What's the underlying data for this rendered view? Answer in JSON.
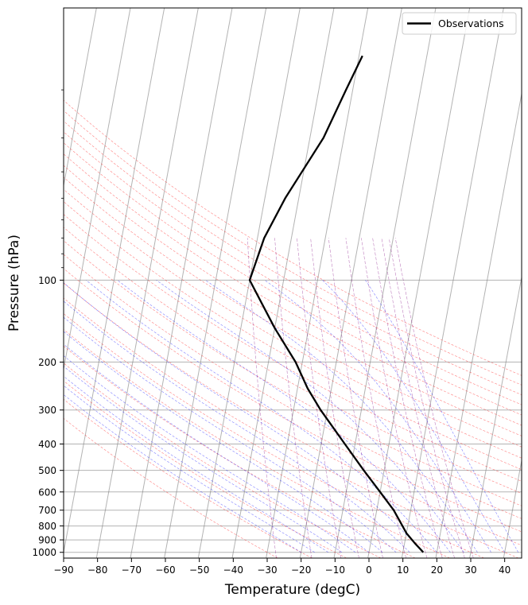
{
  "chart_data": {
    "type": "line",
    "xlabel": "Temperature (degC)",
    "ylabel": "Pressure (hPa)",
    "xlim": [
      -90,
      45
    ],
    "ylim": [
      1050,
      10
    ],
    "y_scale": "log",
    "x_ticks": [
      -90,
      -80,
      -70,
      -60,
      -50,
      -40,
      -30,
      -20,
      -10,
      0,
      10,
      20,
      30,
      40
    ],
    "x_tick_labels": [
      "−90",
      "−80",
      "−70",
      "−60",
      "−50",
      "−40",
      "−30",
      "−20",
      "−10",
      "0",
      "10",
      "20",
      "30",
      "40"
    ],
    "y_ticks": [
      100,
      200,
      300,
      400,
      500,
      600,
      700,
      800,
      900,
      1000
    ],
    "y_tick_labels": [
      "100",
      "200",
      "300",
      "400",
      "500",
      "600",
      "700",
      "800",
      "900",
      "1000"
    ],
    "legend": {
      "position": "upper right",
      "entries": [
        "Observations"
      ]
    },
    "background_lines": {
      "isotherms": {
        "color": "#808080",
        "skew": 30
      },
      "dry_adiabats": {
        "color": "#ff0000",
        "style": "dashed"
      },
      "moist_adiabats": {
        "color": "#0000ff",
        "style": "dashed"
      },
      "mixing_ratio_lines": {
        "color": "#800080",
        "style": "dashed"
      }
    },
    "series": [
      {
        "name": "Observations",
        "color": "#000000",
        "pressure": [
          1000,
          925,
          850,
          700,
          600,
          500,
          400,
          300,
          250,
          200,
          150,
          100,
          70,
          50,
          30,
          20,
          15
        ],
        "temperature": [
          16,
          13,
          10,
          5,
          0,
          -6,
          -13,
          -22,
          -27,
          -32,
          -40,
          -50,
          -48,
          -44,
          -36,
          -32,
          -29
        ]
      }
    ]
  }
}
